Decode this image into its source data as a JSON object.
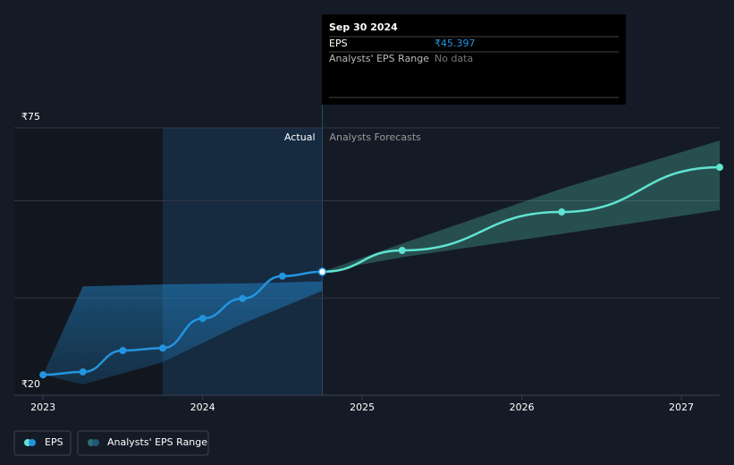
{
  "chart_data": {
    "type": "line",
    "xlim": [
      2022.82,
      2027.24
    ],
    "ylim": [
      20,
      75
    ],
    "xticks": [
      2023,
      2024,
      2025,
      2026,
      2027
    ],
    "yticks": [
      {
        "value": 20,
        "label": "₹20"
      },
      {
        "value": 40,
        "label": null
      },
      {
        "value": 60,
        "label": null
      },
      {
        "value": 75,
        "label": "₹75"
      }
    ],
    "grid": true,
    "highlight_range": [
      2023.75,
      2024.75
    ],
    "actual_label": "Actual",
    "forecast_label": "Analysts Forecasts",
    "series": [
      {
        "name": "EPS",
        "color": "#2394df",
        "x": [
          2023.0,
          2023.25,
          2023.5,
          2023.75,
          2024.0,
          2024.25,
          2024.5,
          2024.75
        ],
        "values": [
          24.2,
          24.8,
          29.2,
          29.7,
          35.8,
          39.9,
          44.5,
          45.397
        ]
      },
      {
        "name": "Analysts' EPS Range",
        "color": "#58d6be",
        "x": [
          2023.0,
          2023.25,
          2023.75,
          2024.25,
          2024.75
        ],
        "low": [
          24.2,
          22.2,
          26.8,
          34.7,
          41.5
        ],
        "high": [
          24.2,
          42.4,
          42.8,
          43.0,
          43.4
        ]
      }
    ],
    "forecast": {
      "color": "#5fe3d2",
      "x": [
        2024.75,
        2025.25,
        2026.25,
        2027.24
      ],
      "values": [
        45.397,
        49.8,
        57.7,
        66.9
      ],
      "low": [
        45.397,
        48.4,
        53.2,
        58.1
      ],
      "high": [
        45.397,
        51.2,
        62.5,
        72.4
      ]
    },
    "tooltip": {
      "date": "Sep 30 2024",
      "rows": [
        {
          "label": "EPS",
          "value": "₹45.397"
        },
        {
          "label": "Analysts' EPS Range",
          "value": "No data"
        }
      ]
    }
  }
}
